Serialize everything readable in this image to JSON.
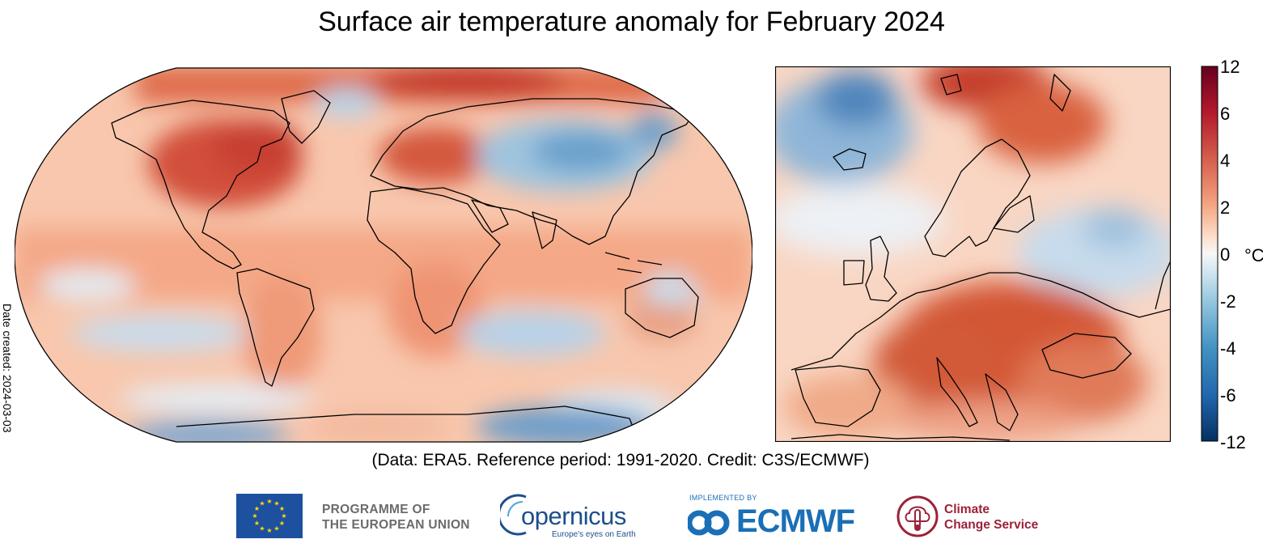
{
  "title": "Surface air temperature anomaly for February 2024",
  "date_created": "Date created: 2024-03-03",
  "credit": "(Data: ERA5.  Reference period: 1991-2020.  Credit: C3S/ECMWF)",
  "colorbar": {
    "ticks": [
      "12",
      "6",
      "4",
      "2",
      "0",
      "-2",
      "-4",
      "-6",
      "-12"
    ],
    "unit": "°C",
    "colors": [
      "#053061",
      "#2166ac",
      "#4393c3",
      "#92c5de",
      "#d1e5f0",
      "#f7f7f7",
      "#fddbc7",
      "#f4a582",
      "#d6604d",
      "#b2182b",
      "#67001f"
    ]
  },
  "maps": {
    "world": {
      "projection": "Robinson"
    },
    "europe": {
      "region": "Europe"
    }
  },
  "logos": {
    "eu_line1": "PROGRAMME OF",
    "eu_line2": "THE EUROPEAN UNION",
    "copernicus": "opernicus",
    "copernicus_tagline": "Europe's eyes on Earth",
    "ecmwf_implemented": "IMPLEMENTED BY",
    "ecmwf": "ECMWF",
    "c3s_line1": "Climate",
    "c3s_line2": "Change Service"
  }
}
